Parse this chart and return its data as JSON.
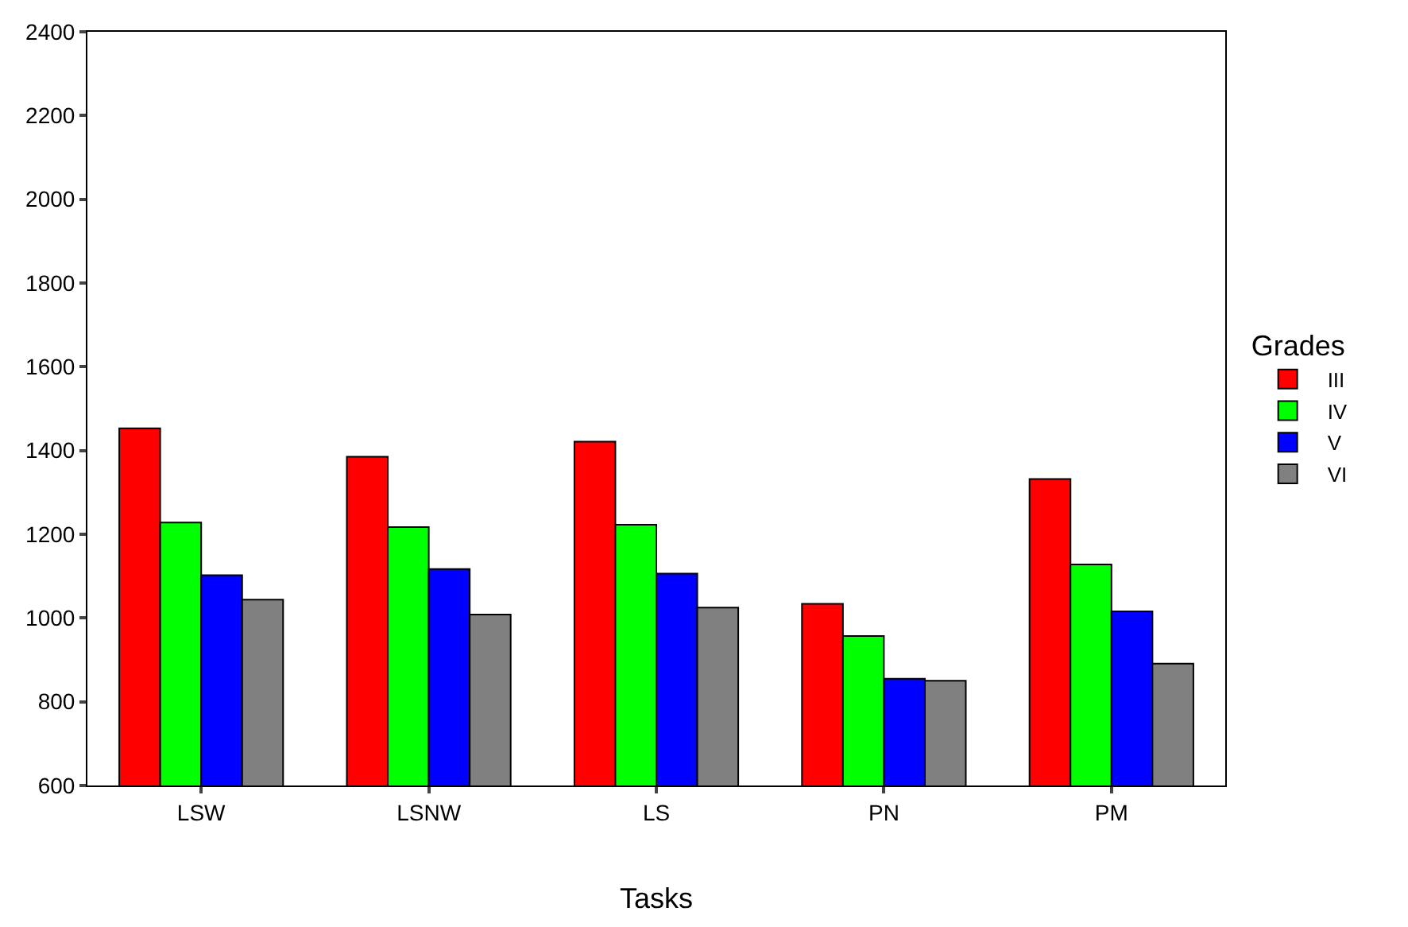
{
  "chart_data": {
    "type": "bar",
    "xlabel": "Tasks",
    "legend_title": "Grades",
    "categories": [
      "LSW",
      "LSNW",
      "LS",
      "PN",
      "PM"
    ],
    "series": [
      {
        "name": "III",
        "color": "#ff0000",
        "values": [
          1453,
          1385,
          1421,
          1034,
          1332
        ]
      },
      {
        "name": "IV",
        "color": "#00ff00",
        "values": [
          1228,
          1217,
          1223,
          957,
          1128
        ]
      },
      {
        "name": "V",
        "color": "#0000ff",
        "values": [
          1102,
          1117,
          1106,
          855,
          1016
        ]
      },
      {
        "name": "VI",
        "color": "#808080",
        "values": [
          1044,
          1008,
          1025,
          850,
          891
        ]
      }
    ],
    "ylim": [
      600,
      2400
    ],
    "yticks": [
      600,
      800,
      1000,
      1200,
      1400,
      1600,
      1800,
      2000,
      2200,
      2400
    ],
    "legend": "right"
  }
}
